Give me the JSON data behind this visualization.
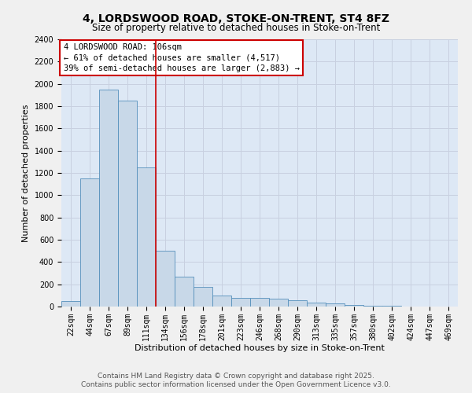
{
  "title_line1": "4, LORDSWOOD ROAD, STOKE-ON-TRENT, ST4 8FZ",
  "title_line2": "Size of property relative to detached houses in Stoke-on-Trent",
  "xlabel": "Distribution of detached houses by size in Stoke-on-Trent",
  "ylabel": "Number of detached properties",
  "categories": [
    "22sqm",
    "44sqm",
    "67sqm",
    "89sqm",
    "111sqm",
    "134sqm",
    "156sqm",
    "178sqm",
    "201sqm",
    "223sqm",
    "246sqm",
    "268sqm",
    "290sqm",
    "313sqm",
    "335sqm",
    "357sqm",
    "380sqm",
    "402sqm",
    "424sqm",
    "447sqm",
    "469sqm"
  ],
  "values": [
    50,
    1150,
    1950,
    1850,
    1250,
    500,
    270,
    175,
    100,
    80,
    75,
    70,
    55,
    35,
    25,
    15,
    10,
    5,
    3,
    2,
    1
  ],
  "bar_color": "#c8d8e8",
  "bar_edge_color": "#5590bb",
  "grid_color": "#c8d0e0",
  "background_color": "#dde8f5",
  "fig_background": "#f0f0f0",
  "red_line_x": 4.5,
  "annotation_text": "4 LORDSWOOD ROAD: 106sqm\n← 61% of detached houses are smaller (4,517)\n39% of semi-detached houses are larger (2,883) →",
  "annotation_box_color": "#ffffff",
  "annotation_box_edge": "#cc0000",
  "red_line_color": "#cc0000",
  "ylim": [
    0,
    2400
  ],
  "yticks": [
    0,
    200,
    400,
    600,
    800,
    1000,
    1200,
    1400,
    1600,
    1800,
    2000,
    2200,
    2400
  ],
  "footer_line1": "Contains HM Land Registry data © Crown copyright and database right 2025.",
  "footer_line2": "Contains public sector information licensed under the Open Government Licence v3.0.",
  "title_fontsize": 10,
  "subtitle_fontsize": 8.5,
  "tick_fontsize": 7,
  "ylabel_fontsize": 8,
  "xlabel_fontsize": 8,
  "annotation_fontsize": 7.5,
  "footer_fontsize": 6.5
}
